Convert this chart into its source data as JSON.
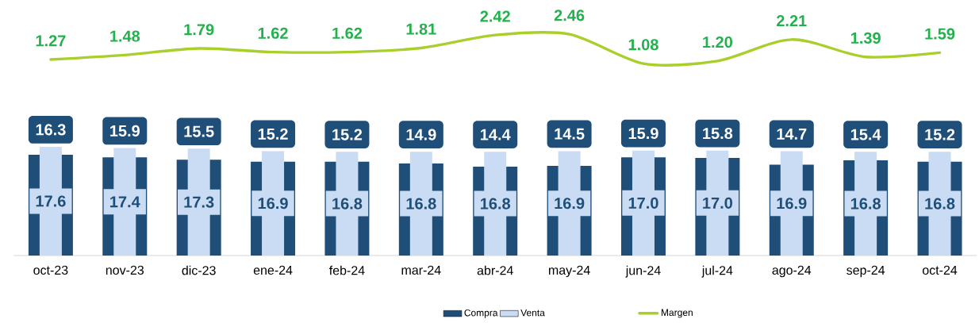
{
  "chart_data": [
    {
      "type": "line",
      "categories": [
        null,
        null,
        null,
        null,
        null,
        null,
        null,
        null,
        null,
        null,
        null,
        null,
        null
      ],
      "series": [
        {
          "name": "Margen",
          "color": "#a8cf2a",
          "values": [
            1.27,
            1.48,
            1.79,
            1.62,
            1.62,
            1.81,
            2.42,
            2.46,
            1.08,
            1.2,
            2.21,
            1.39,
            1.59
          ],
          "value_labels": [
            "1.27",
            "1.48",
            "1.79",
            "1.62",
            "1.62",
            "1.81",
            "2.42",
            "2.46",
            "1.08",
            "1.20",
            "2.21",
            "1.39",
            "1.59"
          ]
        }
      ],
      "legend": "bottom",
      "tick_labels": false
    },
    {
      "type": "bar",
      "categories": [
        "oct-23",
        "nov-23",
        "dic-23",
        "ene-24",
        "feb-24",
        "mar-24",
        "abr-24",
        "may-24",
        "jun-24",
        "jul-24",
        "ago-24",
        "sep-24",
        "oct-24"
      ],
      "series": [
        {
          "name": "Compra",
          "color": "#1f4e79",
          "values": [
            16.3,
            15.9,
            15.5,
            15.2,
            15.2,
            14.9,
            14.4,
            14.5,
            15.9,
            15.8,
            14.7,
            15.4,
            15.2
          ]
        },
        {
          "name": "Venta",
          "color": "#c9dcf3",
          "values": [
            17.6,
            17.4,
            17.3,
            16.9,
            16.8,
            16.8,
            16.8,
            16.9,
            17.0,
            17.0,
            16.9,
            16.8,
            16.8
          ],
          "value_labels": [
            "17.6",
            "17.4",
            "17.3",
            "16.9",
            "16.8",
            "16.8",
            "16.8",
            "16.9",
            "17.0",
            "17.0",
            "16.9",
            "16.8",
            "16.8"
          ]
        }
      ],
      "data_labels": true,
      "legend": "bottom"
    }
  ]
}
